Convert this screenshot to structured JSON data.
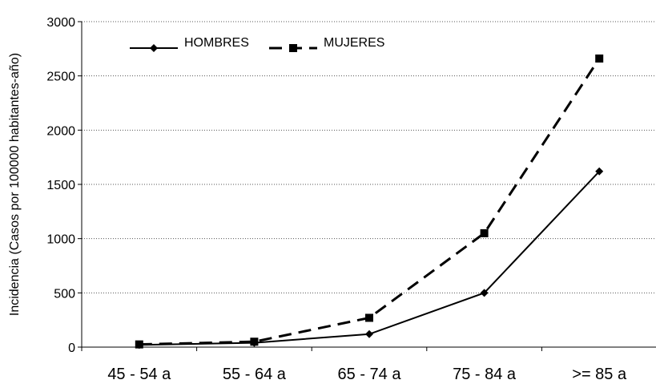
{
  "chart_data": {
    "type": "line",
    "title": "",
    "xlabel": "",
    "ylabel": "Incidencia (Casos por 100000 habitantes-año)",
    "categories": [
      "45 - 54 a",
      "55 - 64 a",
      "65 - 74 a",
      "75 - 84 a",
      ">= 85 a"
    ],
    "ylim": [
      0,
      3000
    ],
    "yticks": [
      0,
      500,
      1000,
      1500,
      2000,
      2500,
      3000
    ],
    "grid": "horizontal dotted",
    "legend_position": "top-left",
    "series": [
      {
        "name": "HOMBRES",
        "values": [
          20,
          40,
          120,
          500,
          1620
        ],
        "color": "#000000",
        "line_style": "solid",
        "marker": "diamond"
      },
      {
        "name": "MUJERES",
        "values": [
          25,
          50,
          270,
          1050,
          2660
        ],
        "color": "#000000",
        "line_style": "dashed",
        "marker": "square"
      }
    ]
  }
}
